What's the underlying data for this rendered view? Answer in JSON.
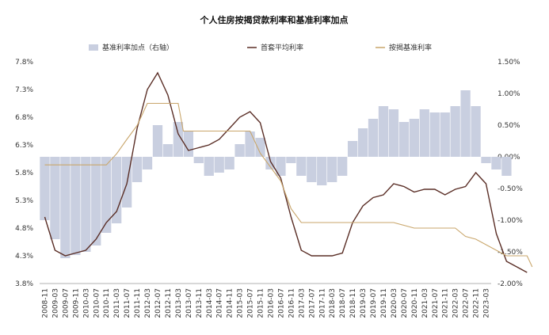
{
  "chart_data": {
    "type": "line",
    "title": "个人住房按揭贷款利率和基准利率加点",
    "legend": {
      "bar_series": "基准利率加点（右轴）",
      "first_home_rate": "首套平均利率",
      "benchmark_rate": "按揭基准利率"
    },
    "colors": {
      "bar": "#c9cfe0",
      "first_home_rate": "#5a2e26",
      "benchmark_rate": "#c9a66b"
    },
    "left_axis": {
      "ylim": [
        3.8,
        7.8
      ],
      "ticks": [
        "7.8%",
        "7.3%",
        "6.8%",
        "6.3%",
        "5.8%",
        "5.3%",
        "4.8%",
        "4.3%",
        "3.8%"
      ]
    },
    "right_axis": {
      "ylim": [
        -2.0,
        1.5
      ],
      "ticks": [
        "1.50%",
        "1.00%",
        "0.50%",
        "0.00%",
        "-0.50%",
        "-1.00%",
        "-1.50%",
        "-2.00%"
      ]
    },
    "x_labels": [
      "2008-11",
      "2009-03",
      "2009-07",
      "2009-11",
      "2010-03",
      "2010-07",
      "2010-11",
      "2011-03",
      "2011-07",
      "2011-11",
      "2012-03",
      "2012-07",
      "2012-11",
      "2013-03",
      "2013-07",
      "2013-11",
      "2014-03",
      "2014-07",
      "2014-11",
      "2015-03",
      "2015-07",
      "2015-11",
      "2016-03",
      "2016-07",
      "2016-11",
      "2017-03",
      "2017-07",
      "2017-11",
      "2018-03",
      "2018-07",
      "2018-11",
      "2019-03",
      "2019-07",
      "2019-11",
      "2020-03",
      "2020-07",
      "2020-11",
      "2021-03",
      "2021-07",
      "2021-11",
      "2022-03",
      "2022-07",
      "2022-11",
      "2023-03"
    ],
    "series": [
      {
        "name": "首套平均利率",
        "points": [
          [
            0,
            5.0
          ],
          [
            1,
            4.4
          ],
          [
            2,
            4.3
          ],
          [
            3,
            4.35
          ],
          [
            4,
            4.4
          ],
          [
            5,
            4.6
          ],
          [
            6,
            4.9
          ],
          [
            7,
            5.1
          ],
          [
            8,
            5.6
          ],
          [
            9,
            6.6
          ],
          [
            10,
            7.3
          ],
          [
            11,
            7.6
          ],
          [
            12,
            7.2
          ],
          [
            13,
            6.5
          ],
          [
            14,
            6.2
          ],
          [
            15,
            6.25
          ],
          [
            16,
            6.3
          ],
          [
            17,
            6.4
          ],
          [
            18,
            6.6
          ],
          [
            19,
            6.8
          ],
          [
            20,
            6.9
          ],
          [
            21,
            6.7
          ],
          [
            22,
            6.0
          ],
          [
            23,
            5.7
          ],
          [
            24,
            5.0
          ],
          [
            25,
            4.4
          ],
          [
            26,
            4.3
          ],
          [
            27,
            4.3
          ],
          [
            28,
            4.3
          ],
          [
            29,
            4.35
          ],
          [
            30,
            4.9
          ],
          [
            31,
            5.2
          ],
          [
            32,
            5.35
          ],
          [
            33,
            5.4
          ],
          [
            34,
            5.6
          ],
          [
            35,
            5.55
          ],
          [
            36,
            5.45
          ],
          [
            37,
            5.5
          ],
          [
            38,
            5.5
          ],
          [
            39,
            5.4
          ],
          [
            40,
            5.5
          ],
          [
            41,
            5.55
          ],
          [
            42,
            5.8
          ],
          [
            43,
            5.6
          ],
          [
            44,
            4.7
          ],
          [
            45,
            4.2
          ],
          [
            46,
            4.1
          ],
          [
            47,
            4.0
          ]
        ]
      },
      {
        "name": "按揭基准利率",
        "points": [
          [
            0,
            5.94
          ],
          [
            6,
            5.94
          ],
          [
            7,
            6.14
          ],
          [
            8,
            6.4
          ],
          [
            9,
            6.65
          ],
          [
            10,
            7.05
          ],
          [
            13,
            7.05
          ],
          [
            13.5,
            6.55
          ],
          [
            20,
            6.55
          ],
          [
            21,
            6.15
          ],
          [
            22,
            5.9
          ],
          [
            23,
            5.65
          ],
          [
            24,
            5.15
          ],
          [
            25,
            4.9
          ],
          [
            34,
            4.9
          ],
          [
            35,
            4.85
          ],
          [
            36,
            4.8
          ],
          [
            40,
            4.8
          ],
          [
            41,
            4.65
          ],
          [
            42,
            4.6
          ],
          [
            45,
            4.3
          ],
          [
            47,
            4.3
          ],
          [
            47.5,
            4.1
          ]
        ]
      }
    ],
    "bars": [
      [
        0,
        -1.0
      ],
      [
        1,
        -1.3
      ],
      [
        2,
        -1.6
      ],
      [
        3,
        -1.55
      ],
      [
        4,
        -1.5
      ],
      [
        5,
        -1.4
      ],
      [
        6,
        -1.2
      ],
      [
        7,
        -1.05
      ],
      [
        8,
        -0.8
      ],
      [
        9,
        -0.4
      ],
      [
        10,
        -0.2
      ],
      [
        11,
        0.5
      ],
      [
        12,
        0.2
      ],
      [
        13,
        0.55
      ],
      [
        14,
        0.4
      ],
      [
        15,
        -0.1
      ],
      [
        16,
        -0.3
      ],
      [
        17,
        -0.25
      ],
      [
        18,
        -0.2
      ],
      [
        19,
        0.2
      ],
      [
        20,
        0.4
      ],
      [
        21,
        0.3
      ],
      [
        22,
        -0.2
      ],
      [
        23,
        -0.3
      ],
      [
        24,
        -0.1
      ],
      [
        25,
        -0.3
      ],
      [
        26,
        -0.4
      ],
      [
        27,
        -0.45
      ],
      [
        28,
        -0.4
      ],
      [
        29,
        -0.3
      ],
      [
        30,
        0.25
      ],
      [
        31,
        0.45
      ],
      [
        32,
        0.6
      ],
      [
        33,
        0.8
      ],
      [
        34,
        0.75
      ],
      [
        35,
        0.55
      ],
      [
        36,
        0.6
      ],
      [
        37,
        0.75
      ],
      [
        38,
        0.7
      ],
      [
        39,
        0.7
      ],
      [
        40,
        0.8
      ],
      [
        41,
        1.05
      ],
      [
        42,
        0.8
      ],
      [
        43,
        -0.1
      ],
      [
        44,
        -0.2
      ],
      [
        45,
        -0.3
      ]
    ]
  }
}
